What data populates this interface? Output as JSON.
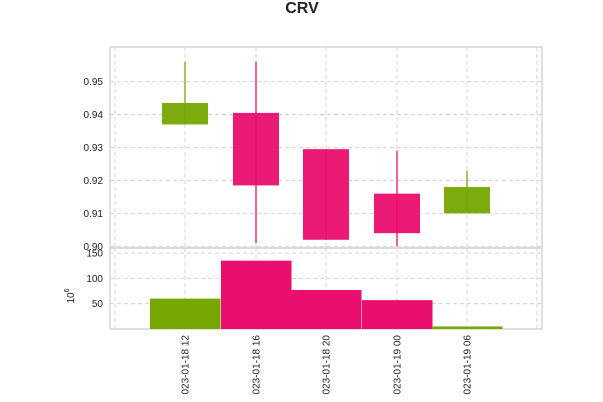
{
  "chart_data": {
    "type": "candlestick",
    "title": "CRV",
    "categories": [
      "023-01-18 12",
      "023-01-18 16",
      "023-01-18 20",
      "023-01-19 00",
      "023-01-19 06"
    ],
    "candles": [
      {
        "open": 0.937,
        "high": 0.956,
        "low": 0.937,
        "close": 0.9435
      },
      {
        "open": 0.9405,
        "high": 0.956,
        "low": 0.901,
        "close": 0.9185
      },
      {
        "open": 0.9295,
        "high": 0.9295,
        "low": 0.902,
        "close": 0.902
      },
      {
        "open": 0.916,
        "high": 0.929,
        "low": 0.9,
        "close": 0.904
      },
      {
        "open": 0.91,
        "high": 0.923,
        "low": 0.91,
        "close": 0.918
      }
    ],
    "price_ylim": [
      0.8995,
      0.9605
    ],
    "price_ticks": [
      "0.90",
      "0.91",
      "0.92",
      "0.93",
      "0.94",
      "0.95"
    ],
    "volume": [
      60,
      135,
      77,
      57,
      5
    ],
    "volume_ylim": [
      0,
      160
    ],
    "volume_ticks": [
      "50",
      "100",
      "150"
    ],
    "volume_ylabel": "10",
    "volume_ylabel_exp": "6",
    "up_color": "#76a700",
    "down_color": "#ea0e6e",
    "grid": true
  }
}
